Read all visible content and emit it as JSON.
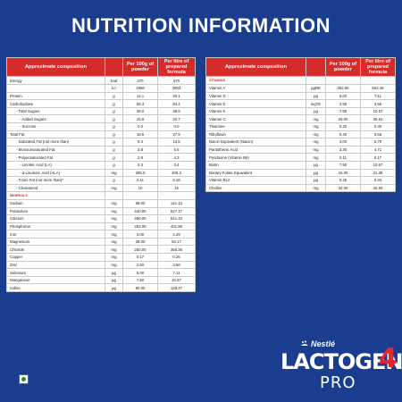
{
  "title": "NUTRITION INFORMATION",
  "header": {
    "composition": "Approximate composition",
    "per100g": "Per 100g of powder",
    "perLitre": "Per litre of prepared formula"
  },
  "left_rows": [
    {
      "name": "Energy",
      "unit": "kcal",
      "a": "470",
      "b": "670",
      "type": "row"
    },
    {
      "name": "",
      "unit": "kJ",
      "a": "1966",
      "b": "2803",
      "type": "row"
    },
    {
      "name": "Protein",
      "unit": "g",
      "a": "14.1",
      "b": "20.1",
      "type": "row"
    },
    {
      "name": "Carbohydrate",
      "unit": "g",
      "a": "59.3",
      "b": "84.4",
      "type": "row"
    },
    {
      "name": "- Total Sugars",
      "unit": "g",
      "a": "28.0",
      "b": "39.9",
      "type": "ind"
    },
    {
      "name": "- Added Sugars",
      "unit": "g",
      "a": "15.9",
      "b": "22.7",
      "type": "ind2"
    },
    {
      "name": "- Sucrose",
      "unit": "g",
      "a": "0.0",
      "b": "0.0",
      "type": "ind2"
    },
    {
      "name": "Total Fat",
      "unit": "g",
      "a": "19.6",
      "b": "27.9",
      "type": "row"
    },
    {
      "name": "- Saturated Fat (not more than)",
      "unit": "g",
      "a": "9.3",
      "b": "13.6",
      "type": "ind"
    },
    {
      "name": "- Monounsaturated Fat",
      "unit": "g",
      "a": "3.8",
      "b": "5.6",
      "type": "ind"
    },
    {
      "name": "- Polyunsaturated Fat",
      "unit": "g",
      "a": "2.9",
      "b": "4.3",
      "type": "ind"
    },
    {
      "name": "- Linoleic Acid (LA)",
      "unit": "g",
      "a": "2.3",
      "b": "3.4",
      "type": "ind2"
    },
    {
      "name": "- α-Linolenic Acid (ALA)",
      "unit": "mg",
      "a": "285.0",
      "b": "406.3",
      "type": "ind2"
    },
    {
      "name": "- Trans Fat (not more than)*",
      "unit": "g",
      "a": "0.11",
      "b": "0.18",
      "type": "ind"
    },
    {
      "name": "- Cholesterol",
      "unit": "mg",
      "a": "10",
      "b": "15",
      "type": "ind"
    },
    {
      "name": "MINERALS",
      "unit": "",
      "a": "",
      "b": "",
      "type": "sec"
    },
    {
      "name": "Sodium",
      "unit": "mg",
      "a": "99.00",
      "b": "141.13",
      "type": "row"
    },
    {
      "name": "Potassium",
      "unit": "mg",
      "a": "440.00",
      "b": "627.17",
      "type": "row"
    },
    {
      "name": "Calcium",
      "unit": "mg",
      "a": "450.00",
      "b": "641.44",
      "type": "row"
    },
    {
      "name": "Phosphorus",
      "unit": "mg",
      "a": "282.00",
      "b": "401.96",
      "type": "row"
    },
    {
      "name": "Iron",
      "unit": "mg",
      "a": "3.00",
      "b": "4.29",
      "type": "row"
    },
    {
      "name": "Magnesium",
      "unit": "mg",
      "a": "38.00",
      "b": "54.17",
      "type": "row"
    },
    {
      "name": "Chloride",
      "unit": "mg",
      "a": "250.00",
      "b": "356.36",
      "type": "row"
    },
    {
      "name": "Copper",
      "unit": "mg",
      "a": "0.17",
      "b": "0.26",
      "type": "row"
    },
    {
      "name": "Zinc",
      "unit": "mg",
      "a": "2.50",
      "b": "3.56",
      "type": "row"
    },
    {
      "name": "Selenium",
      "unit": "µg",
      "a": "5.00",
      "b": "7.11",
      "type": "row"
    },
    {
      "name": "Manganese",
      "unit": "µg",
      "a": "7.50",
      "b": "10.67",
      "type": "row"
    },
    {
      "name": "Iodine",
      "unit": "µg",
      "a": "90.00",
      "b": "128.27",
      "type": "row"
    }
  ],
  "right_rows": [
    {
      "name": "VITAMINS",
      "unit": "",
      "a": "",
      "b": "",
      "type": "sec"
    },
    {
      "name": "Vitamin A",
      "unit": "µgRE",
      "a": "352.50",
      "b": "502.46",
      "type": "row"
    },
    {
      "name": "Vitamin D",
      "unit": "µg",
      "a": "5.00",
      "b": "7.11",
      "type": "row"
    },
    {
      "name": "Vitamin E",
      "unit": "mgTE",
      "a": "2.50",
      "b": "3.56",
      "type": "row"
    },
    {
      "name": "Vitamin K",
      "unit": "µg",
      "a": "7.50",
      "b": "10.67",
      "type": "row"
    },
    {
      "name": "Vitamin C",
      "unit": "mg",
      "a": "25.00",
      "b": "35.61",
      "type": "row"
    },
    {
      "name": "Thiamine",
      "unit": "mg",
      "a": "0.20",
      "b": "0.30",
      "type": "row"
    },
    {
      "name": "Riboflavin",
      "unit": "mg",
      "a": "0.40",
      "b": "0.56",
      "type": "row"
    },
    {
      "name": "Niacin Equivalent (Niacin)",
      "unit": "mg",
      "a": "4.00",
      "b": "5.70",
      "type": "row"
    },
    {
      "name": "Pantothenic Acid",
      "unit": "mg",
      "a": "3.30",
      "b": "4.71",
      "type": "row"
    },
    {
      "name": "Pyridoxine (Vitamin B6)",
      "unit": "mg",
      "a": "0.11",
      "b": "0.17",
      "type": "row"
    },
    {
      "name": "Biotin",
      "unit": "µg",
      "a": "7.50",
      "b": "10.67",
      "type": "row"
    },
    {
      "name": "Dietary Folate Equivalent",
      "unit": "µg",
      "a": "15.00",
      "b": "21.39",
      "type": "row"
    },
    {
      "name": "Vitamin B12",
      "unit": "µg",
      "a": "0.25",
      "b": "0.34",
      "type": "row"
    },
    {
      "name": "Choline",
      "unit": "mg",
      "a": "32.00",
      "b": "45.60",
      "type": "row"
    }
  ],
  "brand": {
    "nestle": "Nestlé",
    "lactogen": "LACTOGEN",
    "stage": "4",
    "pro": "PRO"
  },
  "colors": {
    "background": "#1b3d8f",
    "header_red": "#d52b2b",
    "stage_red": "#e8232b",
    "veg_green": "#2a8a3c"
  },
  "icons": {
    "veg_mark": "vegetarian-mark-icon",
    "nestle_bird": "nestle-nest-icon"
  }
}
